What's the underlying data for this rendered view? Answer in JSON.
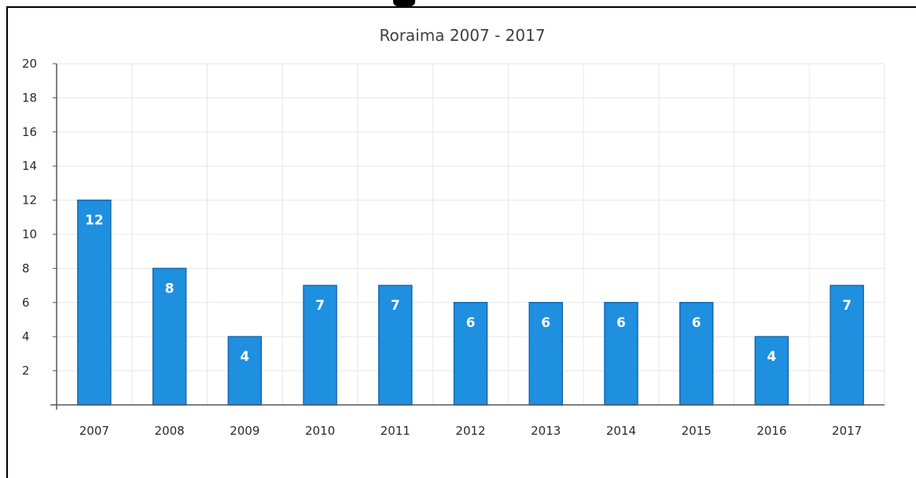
{
  "chart_data": {
    "type": "bar",
    "title": "Roraima 2007 - 2017",
    "xlabel": "",
    "ylabel": "",
    "categories": [
      "2007",
      "2008",
      "2009",
      "2010",
      "2011",
      "2012",
      "2013",
      "2014",
      "2015",
      "2016",
      "2017"
    ],
    "values": [
      12,
      8,
      4,
      7,
      7,
      6,
      6,
      6,
      6,
      4,
      7
    ],
    "value_labels": [
      "12",
      "8",
      "4",
      "7",
      "7",
      "6",
      "6",
      "6",
      "6",
      "4",
      "7"
    ],
    "ylim": [
      0,
      20
    ],
    "y_ticks": [
      2,
      4,
      6,
      8,
      10,
      12,
      14,
      16,
      18,
      20
    ],
    "y_tick_labels": [
      "2",
      "4",
      "6",
      "8",
      "10",
      "12",
      "14",
      "16",
      "18",
      "20"
    ],
    "grid": true,
    "legend": "none",
    "bar_color": "#1f8fe0",
    "bar_edge_color": "#1668ad",
    "grid_color": "#e6e6e6",
    "axis_color": "#555555"
  }
}
